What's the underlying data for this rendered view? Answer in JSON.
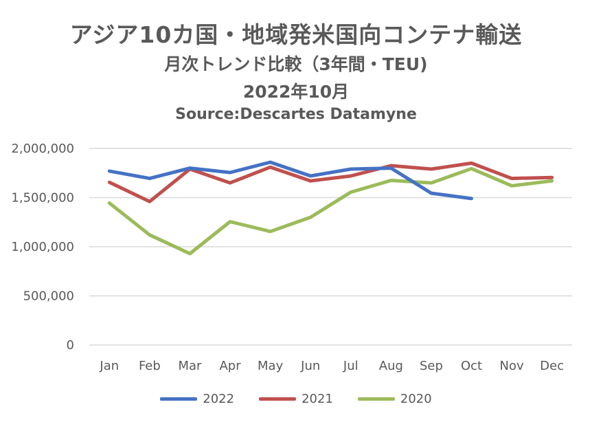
{
  "chart_data": {
    "type": "line",
    "title": "アジア10カ国・地域発米国向コンテナ輸送",
    "subtitle": "月次トレンド比較（3年間・TEU)",
    "period": "2022年10月",
    "source": "Source:Descartes Datamyne",
    "categories": [
      "Jan",
      "Feb",
      "Mar",
      "Apr",
      "May",
      "Jun",
      "Jul",
      "Aug",
      "Sep",
      "Oct",
      "Nov",
      "Dec"
    ],
    "ylim": [
      0,
      2000000
    ],
    "yticks": [
      0,
      500000,
      1000000,
      1500000,
      2000000
    ],
    "ytick_labels": [
      "0",
      "500,000",
      "1,000,000",
      "1,500,000",
      "2,000,000"
    ],
    "grid": true,
    "legend_position": "bottom",
    "series": [
      {
        "name": "2022",
        "color": "#4472C4",
        "values": [
          1770000,
          1695000,
          1800000,
          1755000,
          1860000,
          1720000,
          1790000,
          1800000,
          1545000,
          1490000,
          null,
          null
        ]
      },
      {
        "name": "2021",
        "color": "#C0504D",
        "values": [
          1655000,
          1460000,
          1790000,
          1650000,
          1810000,
          1670000,
          1720000,
          1825000,
          1790000,
          1850000,
          1695000,
          1705000
        ]
      },
      {
        "name": "2020",
        "color": "#9BBB59",
        "values": [
          1445000,
          1120000,
          930000,
          1255000,
          1155000,
          1300000,
          1555000,
          1675000,
          1650000,
          1795000,
          1620000,
          1670000
        ]
      }
    ]
  }
}
